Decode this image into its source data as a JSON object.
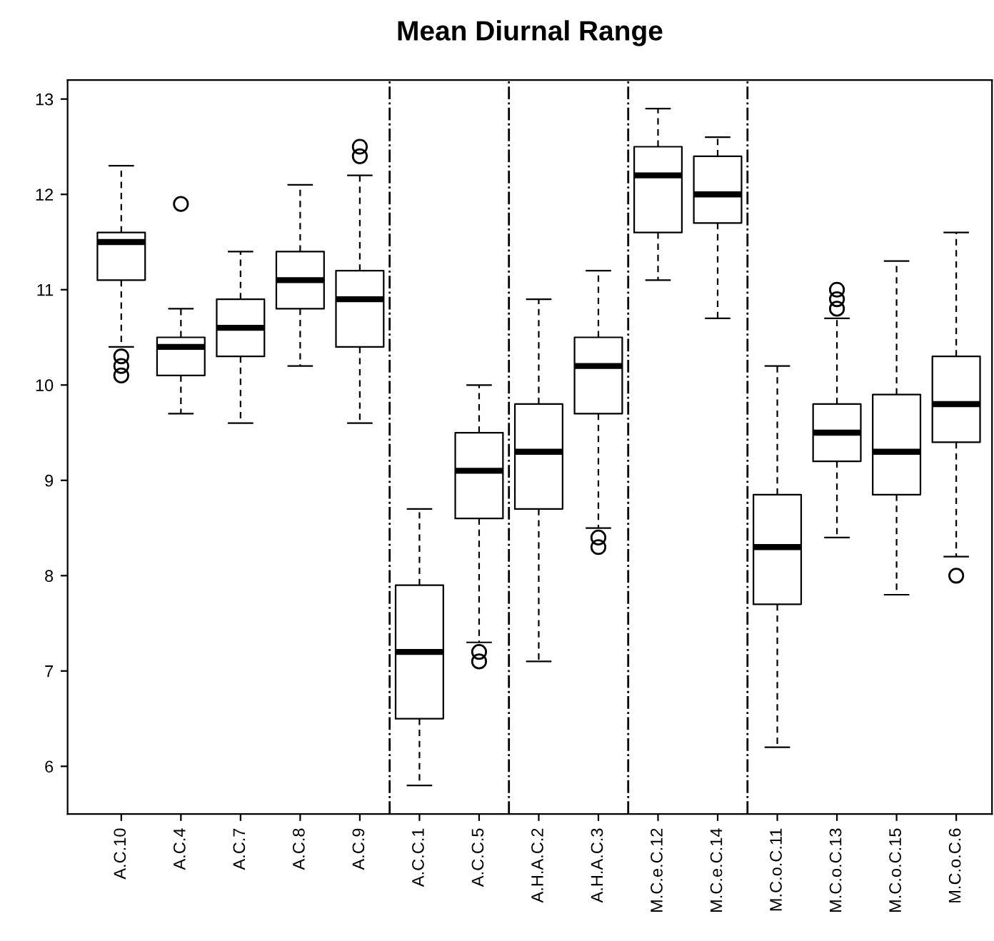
{
  "chart_data": {
    "type": "box",
    "title": "Mean Diurnal Range",
    "categories": [
      "A.C.10",
      "A.C.4",
      "A.C.7",
      "A.C.8",
      "A.C.9",
      "A.C.C.1",
      "A.C.C.5",
      "A.H.A.C.2",
      "A.H.A.C.3",
      "M.C.e.C.12",
      "M.C.e.C.14",
      "M.C.o.C.11",
      "M.C.o.C.13",
      "M.C.o.C.15",
      "M.C.o.C.6"
    ],
    "boxes": [
      {
        "low": 10.4,
        "q1": 11.1,
        "median": 11.5,
        "q3": 11.6,
        "high": 12.3,
        "outliers": [
          10.3,
          10.2,
          10.1
        ]
      },
      {
        "low": 9.7,
        "q1": 10.1,
        "median": 10.4,
        "q3": 10.5,
        "high": 10.8,
        "outliers": [
          11.9
        ]
      },
      {
        "low": 9.6,
        "q1": 10.3,
        "median": 10.6,
        "q3": 10.9,
        "high": 11.4
      },
      {
        "low": 10.2,
        "q1": 10.8,
        "median": 11.1,
        "q3": 11.4,
        "high": 12.1
      },
      {
        "low": 9.6,
        "q1": 10.4,
        "median": 10.9,
        "q3": 11.2,
        "high": 12.2,
        "outliers": [
          12.4,
          12.5
        ]
      },
      {
        "low": 5.8,
        "q1": 6.5,
        "median": 7.2,
        "q3": 7.9,
        "high": 8.7
      },
      {
        "low": 7.3,
        "q1": 8.6,
        "median": 9.1,
        "q3": 9.5,
        "high": 10.0,
        "outliers": [
          7.2,
          7.1
        ]
      },
      {
        "low": 7.1,
        "q1": 8.7,
        "median": 9.3,
        "q3": 9.8,
        "high": 10.9
      },
      {
        "low": 8.5,
        "q1": 9.7,
        "median": 10.2,
        "q3": 10.5,
        "high": 11.2,
        "outliers": [
          8.4,
          8.3
        ]
      },
      {
        "low": 11.1,
        "q1": 11.6,
        "median": 12.2,
        "q3": 12.5,
        "high": 12.9
      },
      {
        "low": 10.7,
        "q1": 11.7,
        "median": 12.0,
        "q3": 12.4,
        "high": 12.6
      },
      {
        "low": 6.2,
        "q1": 7.7,
        "median": 8.3,
        "q3": 8.85,
        "high": 10.2
      },
      {
        "low": 8.4,
        "q1": 9.2,
        "median": 9.5,
        "q3": 9.8,
        "high": 10.7,
        "outliers": [
          10.8,
          10.9,
          11.0
        ]
      },
      {
        "low": 7.8,
        "q1": 8.85,
        "median": 9.3,
        "q3": 9.9,
        "high": 11.3
      },
      {
        "low": 8.2,
        "q1": 9.4,
        "median": 9.8,
        "q3": 10.3,
        "high": 11.6,
        "outliers": [
          8.0
        ]
      }
    ],
    "ylim": [
      5.5,
      13.2
    ],
    "yticks": [
      6,
      7,
      8,
      9,
      10,
      11,
      12,
      13
    ],
    "grid": false
  }
}
